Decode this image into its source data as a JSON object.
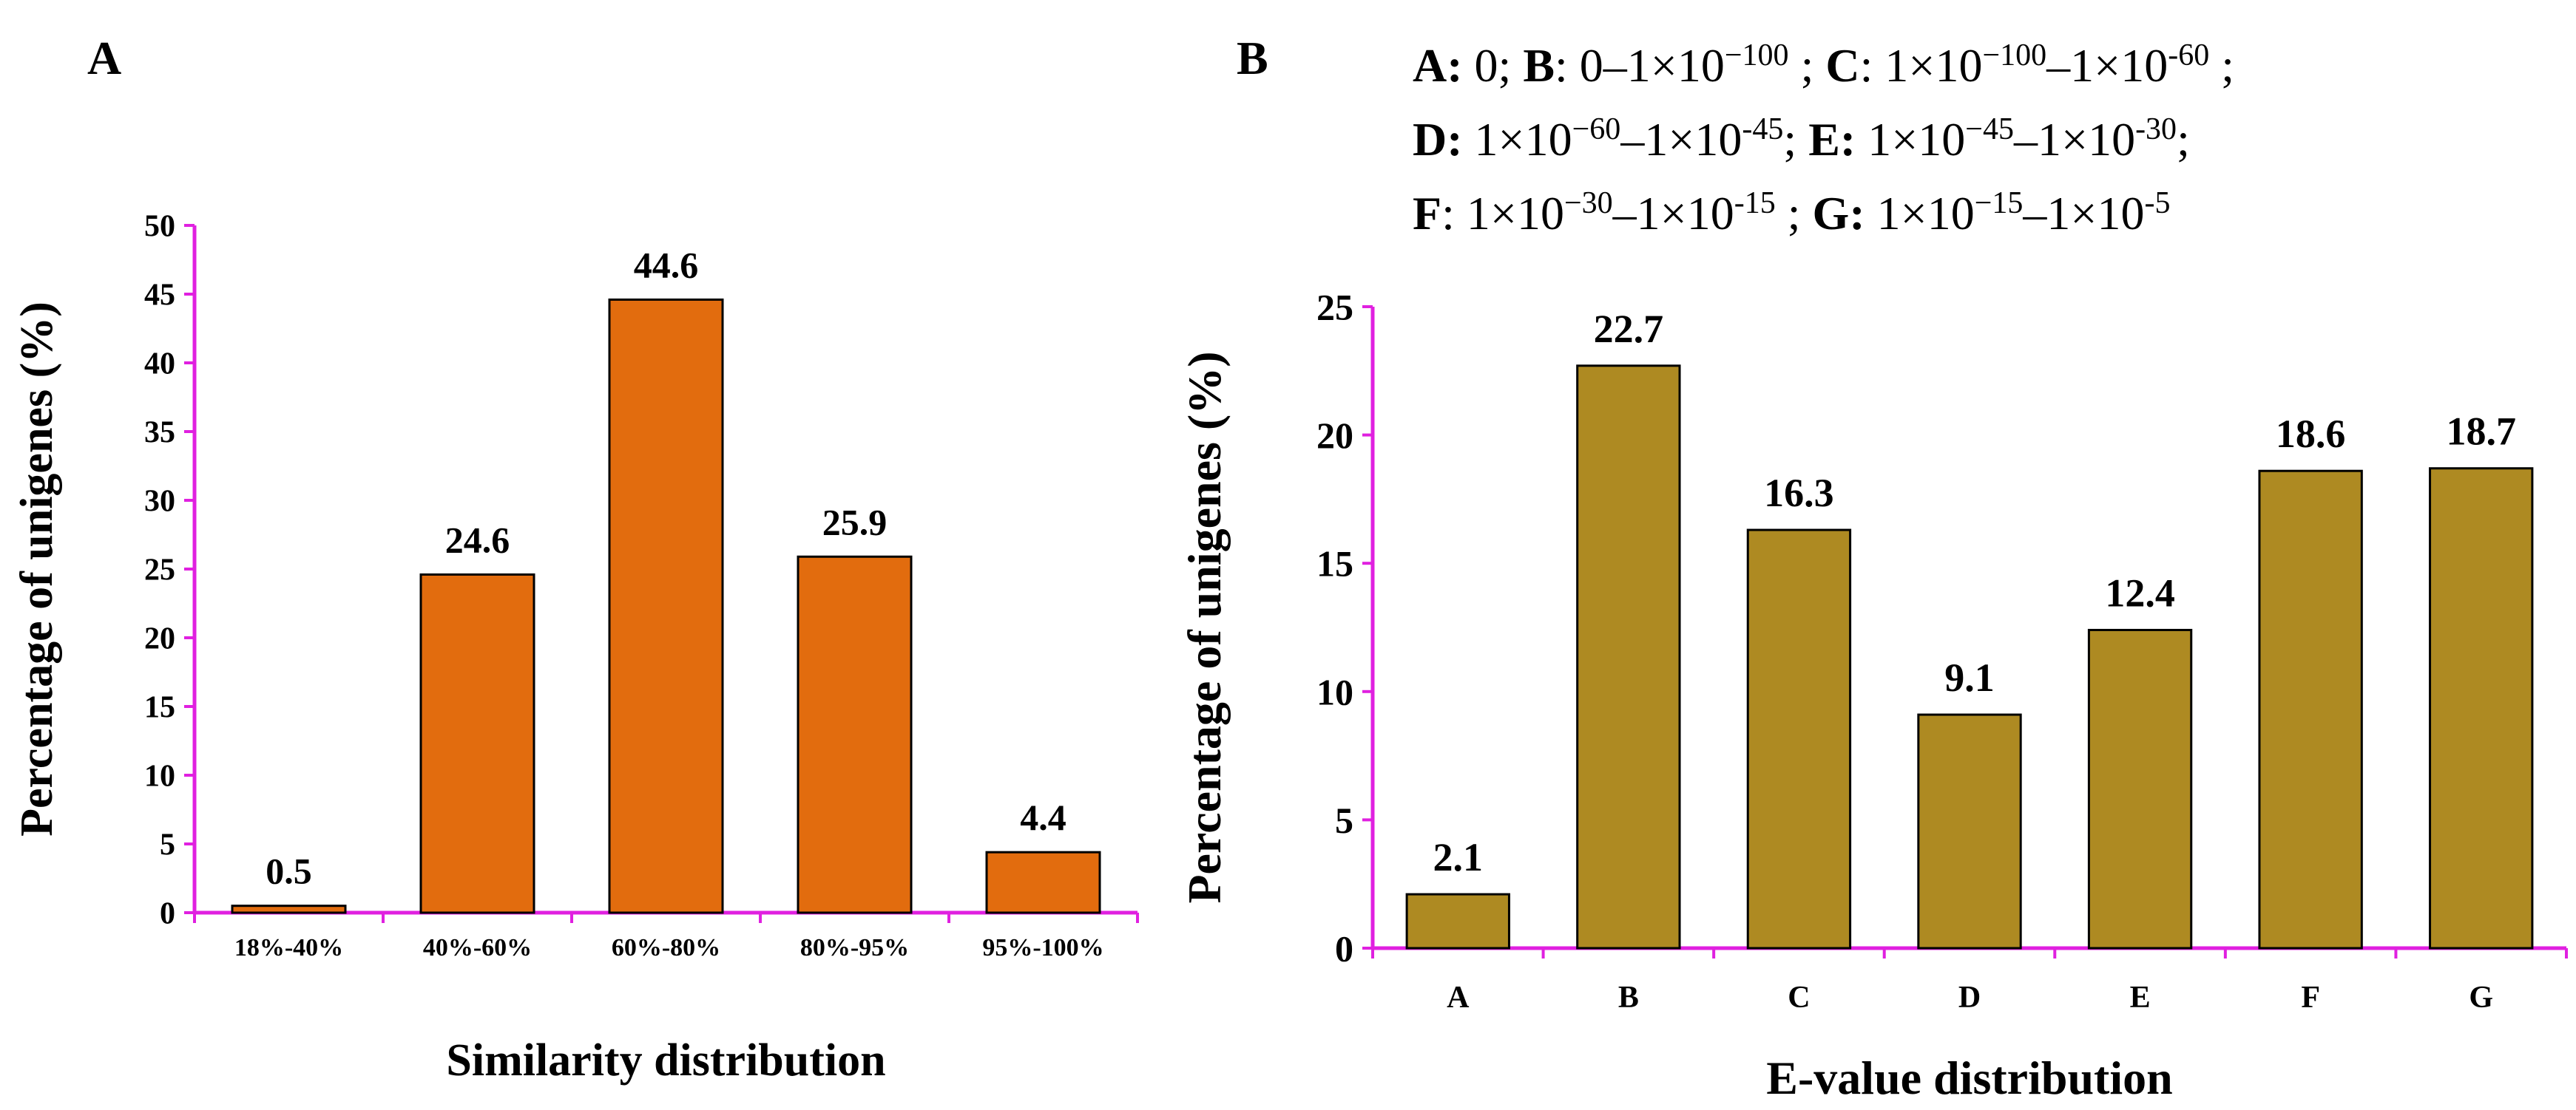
{
  "panel_a": {
    "letter": "A"
  },
  "panel_b": {
    "letter": "B",
    "legend": {
      "line1": {
        "k1": "A:",
        "v1": " 0; ",
        "k2": "B",
        "v2a": ": 0–1×10",
        "e2": "−100",
        "v2b": " ; ",
        "k3": "C",
        "v3a": ": 1×10",
        "e3a": "−100",
        "v3b": "–1×10",
        "e3b": "-60",
        "v3c": " ;"
      },
      "line2": {
        "k1": "D:",
        "v1a": " 1×10",
        "e1a": "−60",
        "v1b": "–1×10",
        "e1b": "-45",
        "v1c": "; ",
        "k2": "E:",
        "v2a": " 1×10",
        "e2a": "−45",
        "v2b": "–1×10",
        "e2b": "-30",
        "v2c": ";"
      },
      "line3": {
        "k1": "F",
        "v1a": ": 1×10",
        "e1a": "−30",
        "v1b": "–1×10",
        "e1b": "-15",
        "v1c": " ; ",
        "k2": "G:",
        "v2a": " 1×10",
        "e2a": "−15",
        "v2b": "–1×10",
        "e2b": "-5"
      }
    }
  },
  "colors": {
    "axis": "#e020e0",
    "bar_a": "#e26c0e",
    "bar_b": "#ae8a22",
    "edge": "#000000"
  },
  "chart_data": [
    {
      "type": "bar",
      "title": "",
      "categories": [
        "18%-40%",
        "40%-60%",
        "60%-80%",
        "80%-95%",
        "95%-100%"
      ],
      "values": [
        0.5,
        24.6,
        44.6,
        25.9,
        4.4
      ],
      "value_labels": [
        "0.5",
        "24.6",
        "44.6",
        "25.9",
        "4.4"
      ],
      "xlabel": "Similarity distribution",
      "ylabel": "Percentage of unigenes (%)",
      "ylim": [
        0,
        50
      ],
      "yticks": [
        0,
        5,
        10,
        15,
        20,
        25,
        30,
        35,
        40,
        45,
        50
      ]
    },
    {
      "type": "bar",
      "title": "",
      "categories": [
        "A",
        "B",
        "C",
        "D",
        "E",
        "F",
        "G"
      ],
      "values": [
        2.1,
        22.7,
        16.3,
        9.1,
        12.4,
        18.6,
        18.7
      ],
      "value_labels": [
        "2.1",
        "22.7",
        "16.3",
        "9.1",
        "12.4",
        "18.6",
        "18.7"
      ],
      "xlabel": "E-value distribution",
      "ylabel": "Percentage of unigenes (%)",
      "ylim": [
        0,
        25
      ],
      "yticks": [
        0,
        5,
        10,
        15,
        20,
        25
      ]
    }
  ]
}
